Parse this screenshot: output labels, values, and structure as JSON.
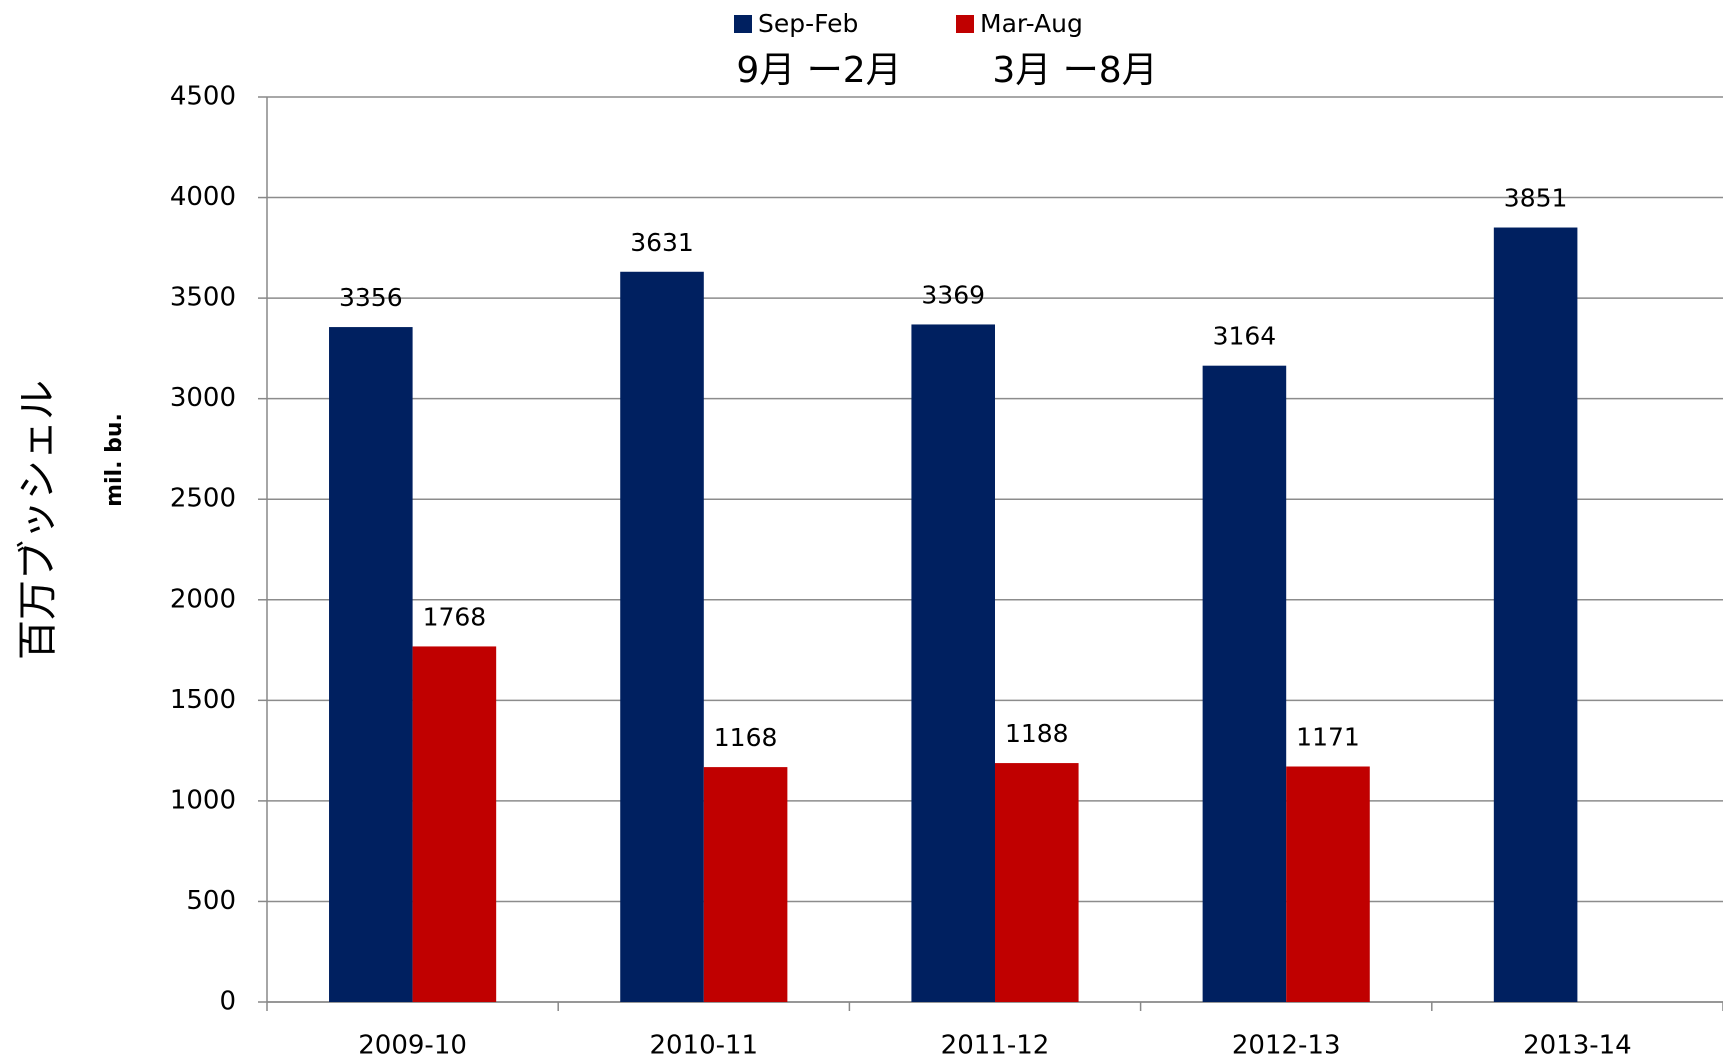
{
  "chart_data": {
    "type": "bar",
    "ylabel": "mil. bu.",
    "ylabel_translation": "百万ブッシェル",
    "annotations": [
      "9月 ー2月",
      "3月 ー8月"
    ],
    "categories": [
      "2009-10",
      "2010-11",
      "2011-12",
      "2012-13",
      "2013-14"
    ],
    "series": [
      {
        "name": "Sep-Feb",
        "color": "#002060",
        "values": [
          3356,
          3631,
          3369,
          3164,
          3851
        ]
      },
      {
        "name": "Mar-Aug",
        "color": "#c00000",
        "values": [
          1768,
          1168,
          1188,
          1171,
          null
        ]
      }
    ],
    "ylim": [
      0,
      4500
    ],
    "yticks": [
      0,
      500,
      1000,
      1500,
      2000,
      2500,
      3000,
      3500,
      4000,
      4500
    ],
    "grid": true,
    "legend": "top"
  }
}
